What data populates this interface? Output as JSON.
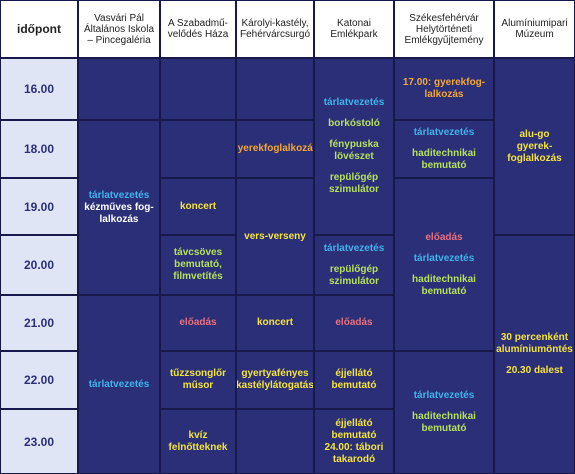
{
  "header": {
    "time_col": "időpont",
    "venues": [
      "Vasvári Pál Általános Iskola – Pincegaléria",
      "A Szabadmű-velődés Háza",
      "Károlyi-kastély, Fehérvárcsurgó",
      "Katonai Emlékpark",
      "Székesfehérvár Helytörténeti Emlékgyűjtemény",
      "Alumíniumipari Múzeum"
    ]
  },
  "times": [
    "16.00",
    "18.00",
    "19.00",
    "20.00",
    "21.00",
    "22.00",
    "23.00"
  ],
  "vasvari": {
    "a1": "tárlatvezetés",
    "a2": "kézműves fog-",
    "a3": "lalkozás",
    "b": "tárlatvezetés"
  },
  "szabad": {
    "a": "koncert",
    "b1": "távcsöves",
    "b2": "bemutató,",
    "b3": "filmvetítés",
    "c": "előadás",
    "d1": "tűzzsonglőr",
    "d2": "műsor",
    "e": "kvíz felnőtteknek"
  },
  "karolyi": {
    "a": "gyerekfoglalkozás",
    "b": "vers-verseny",
    "c": "koncert",
    "d1": "gyertyafényes",
    "d2": "kastélylátogatás"
  },
  "katonai": {
    "a1": "tárlatvezetés",
    "a2": "borkóstoló",
    "a3": "fénypuska",
    "a4": "lövészet",
    "a5": "repülőgép",
    "a6": "szimulátor",
    "b1": "tárlatvezetés",
    "b2": "repülőgép",
    "b3": "szimulátor",
    "c": "előadás",
    "d1": "éjjellátó",
    "d2": "bemutató",
    "e1": "éjjellátó",
    "e2": "bemutató",
    "e3": "24.00: tábori",
    "e4": "takarodó"
  },
  "szekes": {
    "a1": "17.00: gyerekfog-",
    "a2": "lalkozás",
    "b1": "tárlatvezetés",
    "b2": "haditechnikai",
    "b3": "bemutató",
    "c1": "előadás",
    "c2": "tárlatvezetés",
    "c3": "haditechnikai",
    "c4": "bemutató",
    "d1": "tárlatvezetés",
    "d2": "haditechnikai",
    "d3": "bemutató"
  },
  "aluminium": {
    "a1": "alu-go",
    "a2": "gyerek-",
    "a3": "foglalkozás",
    "b1": "30 percenként",
    "b2": "alumíniumöntés",
    "b3": "20.30 dalest"
  }
}
